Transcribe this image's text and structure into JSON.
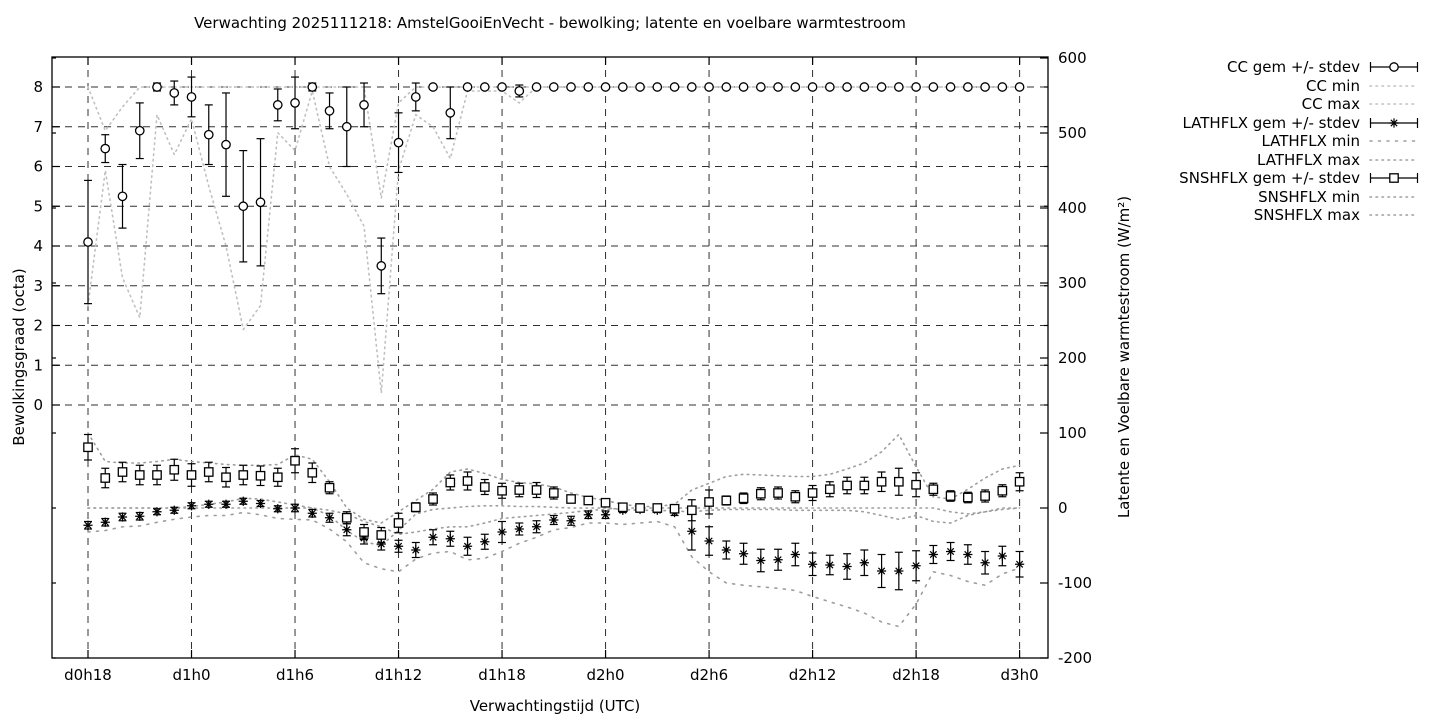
{
  "title": "Verwachting 2025111218: AmstelGooiEnVecht - bewolking; latente en voelbare warmtestroom",
  "chart_data": {
    "type": "line",
    "title": "Verwachting 2025111218: AmstelGooiEnVecht - bewolking; latente en voelbare warmtestroom",
    "xlabel": "Verwachtingstijd (UTC)",
    "ylabel_left": "Bewolkingsgraad (octa)",
    "ylabel_right": "Latente en Voelbare warmtestroom (W/m²)",
    "grid": true,
    "legend_position": "outside-right",
    "colors": {
      "foreground": "#000000",
      "background": "#ffffff",
      "minmax_cc": "#c0c0c0",
      "minmax_flux": "#9e9e9e",
      "gridline": "#303030"
    },
    "x_ticks": [
      {
        "label": "d0h18",
        "hour": 18
      },
      {
        "label": "d1h0",
        "hour": 24
      },
      {
        "label": "d1h6",
        "hour": 30
      },
      {
        "label": "d1h12",
        "hour": 36
      },
      {
        "label": "d1h18",
        "hour": 42
      },
      {
        "label": "d2h0",
        "hour": 48
      },
      {
        "label": "d2h6",
        "hour": 54
      },
      {
        "label": "d2h12",
        "hour": 60
      },
      {
        "label": "d2h18",
        "hour": 66
      },
      {
        "label": "d3h0",
        "hour": 72
      }
    ],
    "y_left_ticks": [
      0,
      1,
      2,
      3,
      4,
      5,
      6,
      7,
      8
    ],
    "y_left_range": [
      8.75,
      -6.4
    ],
    "y_right_ticks": [
      -200,
      -100,
      0,
      100,
      200,
      300,
      400,
      500,
      600
    ],
    "y_right_range": [
      -200,
      600
    ],
    "hours": {
      "start": 18,
      "end": 72,
      "step": 1
    },
    "series": {
      "cc": {
        "name": "CC",
        "axis": "octa",
        "marker": "circle",
        "mean": [
          4.1,
          6.45,
          5.25,
          6.9,
          8,
          7.85,
          7.75,
          6.8,
          6.55,
          5,
          5.1,
          7.55,
          7.6,
          8,
          7.4,
          7,
          7.55,
          3.5,
          6.6,
          7.75,
          8,
          7.35,
          8,
          8,
          8,
          7.9,
          8,
          8,
          8,
          8,
          8,
          8,
          8,
          8,
          8,
          8,
          8,
          8,
          8,
          8,
          8,
          8,
          8,
          8,
          8,
          8,
          8,
          8,
          8,
          8,
          8,
          8,
          8,
          8,
          8
        ],
        "std": [
          1.55,
          0.35,
          0.8,
          0.7,
          0.1,
          0.3,
          0.5,
          0.75,
          1.3,
          1.4,
          1.6,
          0.4,
          0.65,
          0.1,
          0.45,
          1,
          0.55,
          0.7,
          0.75,
          0.35,
          0,
          0.65,
          0,
          0,
          0,
          0.15,
          0,
          0,
          0,
          0,
          0,
          0,
          0,
          0,
          0,
          0,
          0,
          0,
          0,
          0,
          0,
          0,
          0,
          0,
          0,
          0,
          0,
          0,
          0,
          0,
          0,
          0,
          0,
          0,
          0
        ],
        "min": [
          2.5,
          5.9,
          3.2,
          2.2,
          7.3,
          6.3,
          7.2,
          5.5,
          4,
          1.9,
          2.5,
          6.85,
          6.4,
          7.9,
          6,
          5.3,
          4.5,
          0.3,
          5.9,
          7.3,
          7.0,
          6.2,
          7.9,
          7.9,
          7.9,
          7.6,
          8,
          8,
          8,
          8,
          8,
          8,
          8,
          8,
          8,
          8,
          8,
          8,
          8,
          8,
          8,
          8,
          8,
          8,
          8,
          8,
          8,
          8,
          8,
          8,
          8,
          8,
          8,
          8,
          8
        ],
        "max": [
          8,
          6.9,
          7.5,
          8,
          8,
          8,
          8,
          8,
          8,
          8,
          8,
          8,
          8,
          8,
          8,
          8,
          8,
          5.2,
          7.6,
          8,
          8,
          8,
          8,
          8,
          8,
          8,
          8,
          8,
          8,
          8,
          8,
          8,
          8,
          8,
          8,
          8,
          8,
          8,
          8,
          8,
          8,
          8,
          8,
          8,
          8,
          8,
          8,
          8,
          8,
          8,
          8,
          8,
          8,
          8,
          8
        ]
      },
      "lathflx": {
        "name": "LATHFLX",
        "axis": "w",
        "marker": "asterisk",
        "mean": [
          -23,
          -19,
          -12,
          -11,
          -5,
          -3,
          3,
          5,
          5,
          9,
          6,
          -1,
          0,
          -7,
          -13,
          -29,
          -40,
          -48,
          -51,
          -56,
          -39,
          -41,
          -51,
          -45,
          -32,
          -28,
          -25,
          -16,
          -17,
          -9,
          -9,
          -3,
          -2,
          -3,
          -6,
          -31,
          -44,
          -56,
          -61,
          -70,
          -69,
          -62,
          -75,
          -76,
          -78,
          -73,
          -84,
          -84,
          -77,
          -62,
          -58,
          -62,
          -73,
          -64,
          -75
        ],
        "std": [
          5,
          5,
          5,
          5,
          4,
          4,
          4,
          4,
          4,
          4,
          4,
          4,
          5,
          5,
          6,
          8,
          8,
          8,
          8,
          10,
          10,
          10,
          12,
          10,
          14,
          8,
          8,
          6,
          6,
          5,
          5,
          3,
          3,
          3,
          4,
          25,
          19,
          12,
          14,
          15,
          14,
          15,
          15,
          13,
          17,
          17,
          22,
          25,
          20,
          12,
          12,
          13,
          15,
          13,
          17
        ],
        "min": [
          -32,
          -30,
          -25,
          -24,
          -19,
          -15,
          -12,
          -10,
          -10,
          -6,
          -9,
          -14,
          -15,
          -16,
          -28,
          -45,
          -73,
          -81,
          -85,
          -68,
          -60,
          -58,
          -69,
          -67,
          -58,
          -47,
          -39,
          -29,
          -26,
          -20,
          -20,
          -22,
          -20,
          -18,
          -25,
          -65,
          -85,
          -100,
          -103,
          -105,
          -107,
          -110,
          -118,
          -125,
          -132,
          -140,
          -152,
          -158,
          -128,
          -85,
          -90,
          -98,
          -103,
          -88,
          -80
        ],
        "max": [
          0,
          0,
          0,
          0,
          0,
          0,
          2,
          5,
          8,
          13,
          12,
          8,
          4,
          0,
          -3,
          -8,
          -18,
          -25,
          -35,
          -32,
          -28,
          -25,
          -25,
          -20,
          -14,
          -12,
          -10,
          -8,
          -6,
          -3,
          -2,
          0,
          0,
          0,
          0,
          0,
          0,
          0,
          0,
          0,
          0,
          0,
          0,
          0,
          0,
          0,
          0,
          0,
          0,
          0,
          -5,
          -8,
          -5,
          0,
          0
        ]
      },
      "snshflx": {
        "name": "SNSHFLX",
        "axis": "w",
        "marker": "square",
        "mean": [
          81,
          40,
          48,
          44,
          44,
          51,
          44,
          48,
          41,
          44,
          43,
          41,
          63,
          47,
          27,
          -13,
          -32,
          -36,
          -20,
          1,
          12,
          34,
          36,
          28,
          23,
          24,
          24,
          20,
          12,
          10,
          7,
          1,
          0,
          0,
          -1,
          -3,
          8,
          10,
          13,
          19,
          20,
          15,
          20,
          25,
          30,
          30,
          35,
          35,
          31,
          25,
          16,
          14,
          16,
          23,
          35
        ],
        "std": [
          17,
          13,
          13,
          13,
          13,
          14,
          15,
          13,
          13,
          13,
          13,
          12,
          16,
          13,
          8,
          8,
          10,
          10,
          13,
          6,
          8,
          10,
          12,
          10,
          10,
          9,
          10,
          8,
          4,
          3,
          3,
          2,
          2,
          2,
          3,
          14,
          16,
          6,
          7,
          8,
          8,
          8,
          10,
          10,
          11,
          11,
          13,
          18,
          16,
          8,
          7,
          7,
          8,
          8,
          12
        ],
        "min": [
          0,
          0,
          0,
          0,
          0,
          0,
          0,
          0,
          0,
          0,
          0,
          0,
          0,
          0,
          -10,
          -30,
          -45,
          -50,
          -30,
          -8,
          -2,
          0,
          2,
          3,
          3,
          2,
          2,
          1,
          0,
          0,
          0,
          -2,
          -3,
          -3,
          -4,
          -5,
          -3,
          -2,
          -2,
          -2,
          -2,
          -3,
          -3,
          -3,
          -3,
          -5,
          -10,
          -15,
          -10,
          -18,
          -20,
          -10,
          -5,
          -2,
          0
        ],
        "max": [
          100,
          62,
          60,
          60,
          62,
          65,
          62,
          60,
          58,
          57,
          57,
          58,
          71,
          65,
          35,
          0,
          -15,
          -20,
          -5,
          10,
          25,
          48,
          52,
          46,
          38,
          34,
          32,
          28,
          20,
          14,
          10,
          5,
          2,
          2,
          5,
          24,
          33,
          42,
          45,
          44,
          43,
          42,
          42,
          45,
          52,
          60,
          75,
          98,
          55,
          15,
          12,
          25,
          40,
          52,
          57
        ]
      }
    },
    "legend": [
      {
        "label": "CC gem +/- stdev",
        "sample": "errorbar",
        "marker": "circle"
      },
      {
        "label": "CC min",
        "sample": "dotted",
        "color": "#c0c0c0"
      },
      {
        "label": "CC max",
        "sample": "dotted",
        "color": "#c0c0c0"
      },
      {
        "label": "LATHFLX gem +/- stdev",
        "sample": "errorbar",
        "marker": "asterisk"
      },
      {
        "label": "LATHFLX min",
        "sample": "dotted-sparse",
        "color": "#9e9e9e"
      },
      {
        "label": "LATHFLX max",
        "sample": "dotted",
        "color": "#9e9e9e"
      },
      {
        "label": "SNSHFLX gem +/- stdev",
        "sample": "errorbar",
        "marker": "square"
      },
      {
        "label": "SNSHFLX min",
        "sample": "dotted",
        "color": "#9e9e9e"
      },
      {
        "label": "SNSHFLX max",
        "sample": "dotted",
        "color": "#9e9e9e"
      }
    ]
  }
}
